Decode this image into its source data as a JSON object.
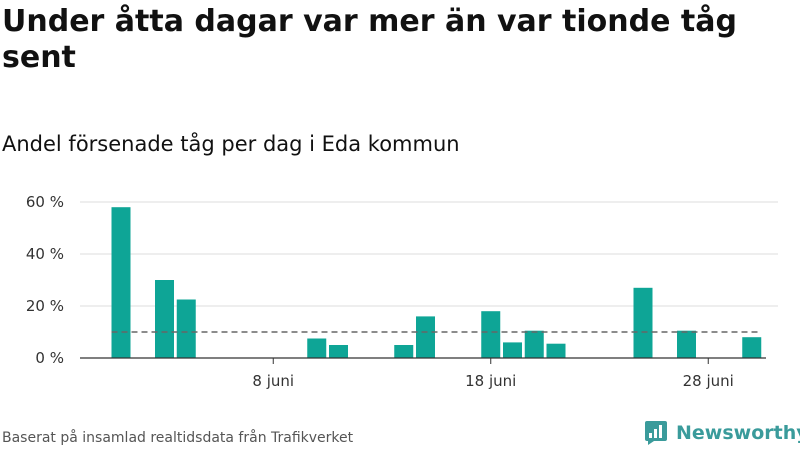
{
  "title": "Under åtta dagar var mer än var tionde tåg sent",
  "subtitle": "Andel försenade tåg per dag i Eda kommun",
  "footer": "Baserat på insamlad realtidsdata från Trafikverket",
  "brand": {
    "name": "Newsworthy",
    "icon": "newsworthy-logo-icon",
    "color": "#3a9b9b"
  },
  "colors": {
    "bar": "#0ea596",
    "reference_line": "#666666",
    "grid": "#dddddd"
  },
  "chart_data": {
    "type": "bar",
    "title": "",
    "xlabel": "",
    "ylabel": "",
    "x_ticks": [
      {
        "day": 8,
        "label": "8 juni"
      },
      {
        "day": 18,
        "label": "18 juni"
      },
      {
        "day": 28,
        "label": "28 juni"
      }
    ],
    "y_ticks": [
      {
        "value": 0,
        "label": "0 %"
      },
      {
        "value": 20,
        "label": "20 %"
      },
      {
        "value": 40,
        "label": "40 %"
      },
      {
        "value": 60,
        "label": "60 %"
      }
    ],
    "xlim": [
      0,
      31
    ],
    "ylim": [
      0,
      60
    ],
    "grid": true,
    "reference_line": {
      "value": 10,
      "style": "dashed",
      "from_day": 1,
      "to_day": 30
    },
    "series": [
      {
        "points": [
          {
            "day": 1,
            "value": 58
          },
          {
            "day": 3,
            "value": 30
          },
          {
            "day": 4,
            "value": 22.5
          },
          {
            "day": 10,
            "value": 7.5
          },
          {
            "day": 11,
            "value": 5
          },
          {
            "day": 14,
            "value": 5
          },
          {
            "day": 15,
            "value": 16
          },
          {
            "day": 18,
            "value": 18
          },
          {
            "day": 19,
            "value": 6
          },
          {
            "day": 20,
            "value": 10.5
          },
          {
            "day": 21,
            "value": 5.5
          },
          {
            "day": 25,
            "value": 27
          },
          {
            "day": 27,
            "value": 10.5
          },
          {
            "day": 30,
            "value": 8
          }
        ]
      }
    ]
  }
}
